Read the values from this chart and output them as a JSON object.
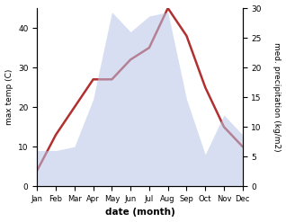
{
  "months": [
    "Jan",
    "Feb",
    "Mar",
    "Apr",
    "May",
    "Jun",
    "Jul",
    "Aug",
    "Sep",
    "Oct",
    "Nov",
    "Dec"
  ],
  "temperature": [
    4,
    13,
    20,
    27,
    27,
    32,
    35,
    45,
    38,
    25,
    15,
    10
  ],
  "rainfall": [
    9,
    9,
    10,
    22,
    44,
    39,
    43,
    44,
    22,
    8,
    18,
    13
  ],
  "temp_color": "#b03030",
  "rain_fill_color": "#b8c4e8",
  "rain_fill_alpha": 0.55,
  "temp_ylim": [
    0,
    45
  ],
  "rain_ylim": [
    0,
    30
  ],
  "temp_yticks": [
    0,
    10,
    20,
    30,
    40
  ],
  "rain_yticks": [
    0,
    5,
    10,
    15,
    20,
    25,
    30
  ],
  "xlabel": "date (month)",
  "ylabel_left": "max temp (C)",
  "ylabel_right": "med. precipitation (kg/m2)",
  "figsize": [
    3.18,
    2.47
  ],
  "dpi": 100
}
